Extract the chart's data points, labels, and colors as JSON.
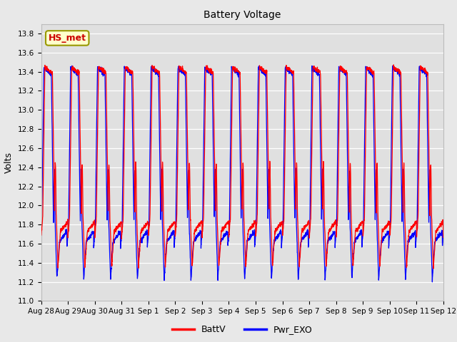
{
  "title": "Battery Voltage",
  "ylabel": "Volts",
  "x_tick_labels": [
    "Aug 28",
    "Aug 29",
    "Aug 30",
    "Aug 31",
    "Sep 1",
    "Sep 2",
    "Sep 3",
    "Sep 4",
    "Sep 5",
    "Sep 6",
    "Sep 7",
    "Sep 8",
    "Sep 9",
    "Sep 10",
    "Sep 11",
    "Sep 12"
  ],
  "ylim": [
    11.0,
    13.9
  ],
  "yticks": [
    11.0,
    11.2,
    11.4,
    11.6,
    11.8,
    12.0,
    12.2,
    12.4,
    12.6,
    12.8,
    13.0,
    13.2,
    13.4,
    13.6,
    13.8
  ],
  "legend_entries": [
    "BattV",
    "Pwr_EXO"
  ],
  "line_colors": [
    "red",
    "blue"
  ],
  "plot_bg_color": "#e8e8e8",
  "inner_bg_color": "#e0e0e0",
  "annotation_text": "HS_met",
  "annotation_color": "#cc0000",
  "annotation_bg": "#ffffcc",
  "annotation_edge": "#999900",
  "num_cycles": 15,
  "ppc": 200,
  "battv_max": 13.45,
  "battv_min": 11.35,
  "pwrexo_max": 13.44,
  "pwrexo_min": 11.22,
  "title_fontsize": 10,
  "ylabel_fontsize": 9,
  "tick_fontsize": 7.5,
  "legend_fontsize": 9
}
